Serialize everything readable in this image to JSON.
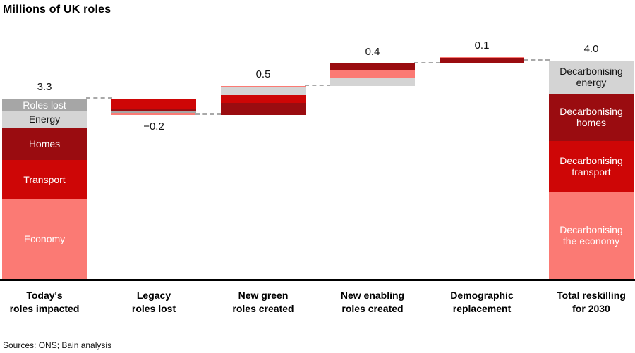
{
  "title": "Millions of UK roles",
  "sources": "Sources: ONS; Bain analysis",
  "palette": {
    "darkred": "#9a0c10",
    "red": "#ce0606",
    "salmon": "#fb7a74",
    "gray": "#a6a6a6",
    "lightgray": "#d4d4d4",
    "white": "#ffffff"
  },
  "chart_data": {
    "type": "bar",
    "subtype": "waterfall",
    "title": "Millions of UK roles",
    "unit": "millions of UK roles",
    "categories": [
      "Today's roles impacted",
      "Legacy roles lost",
      "New green roles created",
      "New enabling roles created",
      "Demographic replacement",
      "Total reskilling for 2030"
    ],
    "values": [
      3.3,
      -0.2,
      0.5,
      0.4,
      0.1,
      4.0
    ],
    "grid": false,
    "legend": false,
    "bars": [
      {
        "id": "todays-roles-impacted",
        "label_lines": "Today's\nroles impacted",
        "value": 3.3,
        "value_label": "3.3",
        "kind": "total",
        "value_label_pos": "above",
        "segments": [
          {
            "name": "Roles lost",
            "label": "Roles lost",
            "color": "gray",
            "text": "light",
            "value": 0.22
          },
          {
            "name": "Energy",
            "label": "Energy",
            "color": "lightgray",
            "text": "dark",
            "value": 0.31
          },
          {
            "name": "Homes",
            "label": "Homes",
            "color": "darkred",
            "text": "light",
            "value": 0.59
          },
          {
            "name": "Transport",
            "label": "Transport",
            "color": "red",
            "text": "light",
            "value": 0.72
          },
          {
            "name": "Economy",
            "label": "Economy",
            "color": "salmon",
            "text": "light",
            "value": 1.46
          }
        ]
      },
      {
        "id": "legacy-roles-lost",
        "label_lines": "Legacy\nroles lost",
        "value": -0.2,
        "value_label": "−0.2",
        "kind": "decrease",
        "value_label_pos": "below",
        "segments": [
          {
            "name": "transport-lost",
            "color": "red",
            "value": 0.185
          },
          {
            "name": "homes-lost",
            "color": "darkred",
            "value": 0.045
          },
          {
            "name": "energy-lost",
            "color": "gray",
            "value": 0.027
          },
          {
            "name": "separator",
            "color": "white",
            "value": 0.013
          },
          {
            "name": "economy-lost",
            "color": "salmon",
            "value": 0.025
          }
        ]
      },
      {
        "id": "new-green-roles-created",
        "label_lines": "New green\nroles created",
        "value": 0.5,
        "value_label": "0.5",
        "kind": "increase",
        "value_label_pos": "above",
        "segments": [
          {
            "name": "economy-green",
            "color": "salmon",
            "value": 0.025
          },
          {
            "name": "energy-green",
            "color": "lightgray",
            "value": 0.145
          },
          {
            "name": "transport-green",
            "color": "red",
            "value": 0.145
          },
          {
            "name": "homes-green",
            "color": "darkred",
            "value": 0.215
          }
        ]
      },
      {
        "id": "new-enabling-roles-created",
        "label_lines": "New enabling\nroles created",
        "value": 0.4,
        "value_label": "0.4",
        "kind": "increase",
        "value_label_pos": "above",
        "segments": [
          {
            "name": "homes-enabling",
            "color": "darkred",
            "value": 0.13
          },
          {
            "name": "economy-enabling",
            "color": "salmon",
            "value": 0.13
          },
          {
            "name": "energy-enabling",
            "color": "lightgray",
            "value": 0.15
          }
        ]
      },
      {
        "id": "demographic-replacement",
        "label_lines": "Demographic\nreplacement",
        "value": 0.1,
        "value_label": "0.1",
        "kind": "increase",
        "value_label_pos": "above",
        "segments": [
          {
            "name": "economy-demo",
            "color": "salmon",
            "value": 0.02
          },
          {
            "name": "homes-demo",
            "color": "darkred",
            "value": 0.095
          }
        ]
      },
      {
        "id": "total-reskilling-for-2030",
        "label_lines": "Total reskilling\nfor 2030",
        "value": 4.0,
        "value_label": "4.0",
        "kind": "total",
        "value_label_pos": "above",
        "segments": [
          {
            "name": "Decarbonising energy",
            "label": "Decarbonising\nenergy",
            "color": "lightgray",
            "text": "dark",
            "value": 0.6
          },
          {
            "name": "Decarbonising homes",
            "label": "Decarbonising\nhomes",
            "color": "darkred",
            "text": "light",
            "value": 0.87
          },
          {
            "name": "Decarbonising transport",
            "label": "Decarbonising\ntransport",
            "color": "red",
            "text": "light",
            "value": 0.93
          },
          {
            "name": "Decarbonising the economy",
            "label": "Decarbonising\nthe economy",
            "color": "salmon",
            "text": "light",
            "value": 1.6
          }
        ]
      }
    ]
  }
}
